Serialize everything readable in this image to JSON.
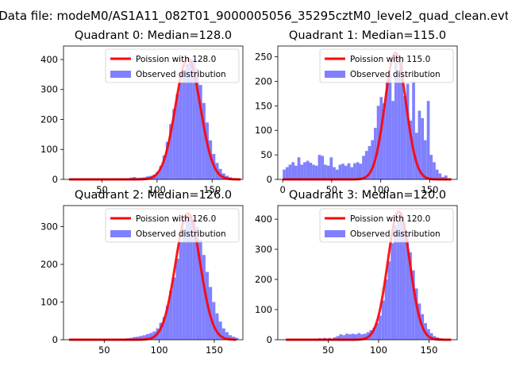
{
  "suptitle": "Data file: modeM0/AS1A11_082T01_9000005056_35295cztM0_level2_quad_clean.evt",
  "legend": {
    "observed_label": "Observed distribution"
  },
  "colors": {
    "poisson": "#ff0000",
    "hist": "#8080ff",
    "axis": "#000000"
  },
  "chart_data": [
    {
      "type": "histogram",
      "title": "Quadrant 0: Median=128.0",
      "median": 128.0,
      "poisson_label": "Poission with 128.0",
      "xlim": [
        15,
        178
      ],
      "ylim": [
        0,
        445
      ],
      "xticks": [
        50,
        100,
        150
      ],
      "yticks": [
        0,
        100,
        200,
        300,
        400
      ],
      "peak_scale": 403,
      "bins": [
        [
          63,
          3
        ],
        [
          66,
          2
        ],
        [
          69,
          4
        ],
        [
          72,
          3
        ],
        [
          75,
          6
        ],
        [
          78,
          8
        ],
        [
          81,
          5
        ],
        [
          84,
          6
        ],
        [
          87,
          7
        ],
        [
          90,
          10
        ],
        [
          93,
          12
        ],
        [
          96,
          16
        ],
        [
          99,
          25
        ],
        [
          102,
          45
        ],
        [
          105,
          80
        ],
        [
          108,
          125
        ],
        [
          111,
          185
        ],
        [
          114,
          235
        ],
        [
          117,
          285
        ],
        [
          120,
          325
        ],
        [
          123,
          360
        ],
        [
          126,
          385
        ],
        [
          129,
          400
        ],
        [
          132,
          400
        ],
        [
          135,
          370
        ],
        [
          138,
          315
        ],
        [
          141,
          255
        ],
        [
          144,
          190
        ],
        [
          147,
          130
        ],
        [
          150,
          85
        ],
        [
          153,
          55
        ],
        [
          156,
          35
        ],
        [
          159,
          20
        ],
        [
          162,
          12
        ],
        [
          165,
          7
        ],
        [
          168,
          4
        ],
        [
          171,
          3
        ]
      ],
      "curve_x": [
        20,
        176
      ]
    },
    {
      "type": "histogram",
      "title": "Quadrant 1: Median=115.0",
      "median": 115.0,
      "poisson_label": "Poission with 115.0",
      "xlim": [
        -5,
        178
      ],
      "ylim": [
        0,
        272
      ],
      "xticks": [
        0,
        50,
        100,
        150
      ],
      "yticks": [
        0,
        50,
        100,
        150,
        200,
        250
      ],
      "peak_scale": 258,
      "bins": [
        [
          0,
          20
        ],
        [
          3,
          25
        ],
        [
          6,
          30
        ],
        [
          9,
          35
        ],
        [
          12,
          28
        ],
        [
          15,
          45
        ],
        [
          18,
          30
        ],
        [
          21,
          35
        ],
        [
          24,
          38
        ],
        [
          27,
          34
        ],
        [
          30,
          30
        ],
        [
          33,
          28
        ],
        [
          36,
          50
        ],
        [
          39,
          48
        ],
        [
          42,
          30
        ],
        [
          45,
          28
        ],
        [
          48,
          45
        ],
        [
          51,
          25
        ],
        [
          54,
          20
        ],
        [
          57,
          30
        ],
        [
          60,
          32
        ],
        [
          63,
          28
        ],
        [
          66,
          33
        ],
        [
          69,
          25
        ],
        [
          72,
          33
        ],
        [
          75,
          35
        ],
        [
          78,
          32
        ],
        [
          81,
          48
        ],
        [
          84,
          58
        ],
        [
          87,
          68
        ],
        [
          90,
          80
        ],
        [
          93,
          105
        ],
        [
          96,
          150
        ],
        [
          99,
          168
        ],
        [
          102,
          155
        ],
        [
          105,
          200
        ],
        [
          108,
          215
        ],
        [
          111,
          160
        ],
        [
          114,
          255
        ],
        [
          117,
          210
        ],
        [
          120,
          250
        ],
        [
          123,
          170
        ],
        [
          126,
          195
        ],
        [
          129,
          120
        ],
        [
          132,
          200
        ],
        [
          135,
          95
        ],
        [
          138,
          140
        ],
        [
          141,
          125
        ],
        [
          144,
          80
        ],
        [
          147,
          160
        ],
        [
          150,
          50
        ],
        [
          153,
          35
        ],
        [
          156,
          20
        ],
        [
          159,
          12
        ],
        [
          162,
          5
        ],
        [
          165,
          8
        ]
      ],
      "curve_x": [
        0,
        172
      ]
    },
    {
      "type": "histogram",
      "title": "Quadrant 2: Median=126.0",
      "median": 126.0,
      "poisson_label": "Poission with 126.0",
      "xlim": [
        13,
        176
      ],
      "ylim": [
        0,
        356
      ],
      "xticks": [
        50,
        100,
        150
      ],
      "yticks": [
        0,
        100,
        200,
        300
      ],
      "peak_scale": 335,
      "bins": [
        [
          64,
          3
        ],
        [
          67,
          3
        ],
        [
          70,
          4
        ],
        [
          73,
          5
        ],
        [
          76,
          7
        ],
        [
          79,
          8
        ],
        [
          82,
          10
        ],
        [
          85,
          12
        ],
        [
          88,
          15
        ],
        [
          91,
          18
        ],
        [
          94,
          22
        ],
        [
          97,
          30
        ],
        [
          100,
          45
        ],
        [
          103,
          60
        ],
        [
          106,
          90
        ],
        [
          109,
          130
        ],
        [
          112,
          165
        ],
        [
          115,
          215
        ],
        [
          118,
          260
        ],
        [
          121,
          295
        ],
        [
          124,
          325
        ],
        [
          127,
          330
        ],
        [
          130,
          320
        ],
        [
          133,
          300
        ],
        [
          136,
          265
        ],
        [
          139,
          225
        ],
        [
          142,
          180
        ],
        [
          145,
          140
        ],
        [
          148,
          100
        ],
        [
          151,
          70
        ],
        [
          154,
          48
        ],
        [
          157,
          30
        ],
        [
          160,
          20
        ],
        [
          163,
          12
        ],
        [
          166,
          8
        ],
        [
          169,
          5
        ]
      ],
      "curve_x": [
        18,
        170
      ]
    },
    {
      "type": "histogram",
      "title": "Quadrant 3: Median=120.0",
      "median": 120.0,
      "poisson_label": "Poission with 120.0",
      "xlim": [
        0,
        178
      ],
      "ylim": [
        0,
        445
      ],
      "xticks": [
        50,
        100,
        150
      ],
      "yticks": [
        0,
        100,
        200,
        300,
        400
      ],
      "peak_scale": 425,
      "bins": [
        [
          30,
          3
        ],
        [
          35,
          4
        ],
        [
          40,
          5
        ],
        [
          45,
          6
        ],
        [
          50,
          6
        ],
        [
          55,
          8
        ],
        [
          58,
          12
        ],
        [
          61,
          18
        ],
        [
          64,
          15
        ],
        [
          67,
          20
        ],
        [
          70,
          18
        ],
        [
          73,
          20
        ],
        [
          76,
          18
        ],
        [
          79,
          22
        ],
        [
          82,
          18
        ],
        [
          85,
          20
        ],
        [
          88,
          25
        ],
        [
          91,
          32
        ],
        [
          94,
          40
        ],
        [
          97,
          55
        ],
        [
          100,
          80
        ],
        [
          103,
          130
        ],
        [
          106,
          200
        ],
        [
          109,
          260
        ],
        [
          112,
          320
        ],
        [
          115,
          380
        ],
        [
          118,
          395
        ],
        [
          121,
          420
        ],
        [
          124,
          390
        ],
        [
          127,
          360
        ],
        [
          130,
          290
        ],
        [
          133,
          230
        ],
        [
          136,
          170
        ],
        [
          139,
          120
        ],
        [
          142,
          85
        ],
        [
          145,
          55
        ],
        [
          148,
          35
        ],
        [
          151,
          22
        ],
        [
          154,
          12
        ],
        [
          157,
          8
        ],
        [
          160,
          5
        ]
      ],
      "curve_x": [
        8,
        172
      ]
    }
  ]
}
